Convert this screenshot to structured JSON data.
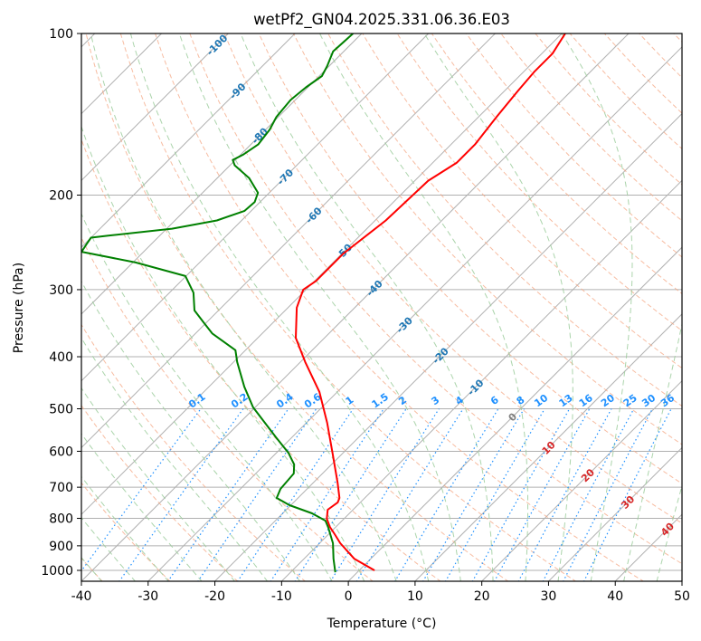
{
  "chart_data": {
    "type": "line",
    "subtype": "skew-t log-p",
    "title": "wetPf2_GN04.2025.331.06.36.E03",
    "xlabel": "Temperature (°C)",
    "ylabel": "Pressure (hPa)",
    "xlim": [
      -40,
      50
    ],
    "ylim": [
      1050,
      100
    ],
    "yscale": "log",
    "xticks": [
      "-40",
      "-30",
      "-20",
      "-10",
      "0",
      "10",
      "20",
      "30",
      "40",
      "50"
    ],
    "yticks": [
      "100",
      "200",
      "300",
      "400",
      "500",
      "600",
      "700",
      "800",
      "900",
      "1000"
    ],
    "grid": true,
    "series": [
      {
        "name": "Temperature",
        "color": "#ff0000",
        "p": [
          1000,
          951,
          890,
          856,
          830,
          801,
          771,
          747,
          733,
          686,
          604,
          531,
          465,
          409,
          369,
          324,
          300,
          289,
          257,
          223,
          188,
          174,
          161,
          143,
          128,
          118,
          109,
          100
        ],
        "t": [
          2.3,
          -2.5,
          -6.9,
          -9.1,
          -10.9,
          -12.6,
          -13.8,
          -13.4,
          -13.8,
          -16.4,
          -21.6,
          -26.9,
          -32.7,
          -39.3,
          -44.3,
          -48.7,
          -50.4,
          -49.8,
          -49.8,
          -48.4,
          -48.0,
          -46.4,
          -46.4,
          -47.3,
          -48.0,
          -48.4,
          -48.4,
          -49.5
        ]
      },
      {
        "name": "Dewpoint",
        "color": "#008000",
        "p": [
          1008,
          951,
          890,
          833,
          808,
          783,
          756,
          733,
          705,
          660,
          635,
          604,
          565,
          497,
          455,
          409,
          389,
          362,
          346,
          328,
          304,
          283,
          267,
          255,
          247,
          240,
          238,
          231,
          223,
          214,
          206,
          198,
          186,
          176,
          172,
          168,
          161,
          151,
          143,
          133,
          126,
          120,
          115,
          108,
          100
        ],
        "t": [
          -3.3,
          -5.6,
          -8.0,
          -11.0,
          -12.5,
          -15.6,
          -20.2,
          -23.2,
          -24.0,
          -24.3,
          -25.6,
          -28.2,
          -32.4,
          -40.3,
          -44.7,
          -49.5,
          -51.5,
          -57.5,
          -60.3,
          -63.6,
          -66.4,
          -70.1,
          -79.6,
          -89.3,
          -89.7,
          -90.0,
          -87.7,
          -79.2,
          -73.7,
          -71.0,
          -70.8,
          -71.7,
          -75.2,
          -79.3,
          -80.4,
          -79.6,
          -78.9,
          -79.4,
          -80.3,
          -80.7,
          -80.3,
          -79.6,
          -80.3,
          -81.6,
          -81.3
        ]
      }
    ],
    "isotherm_labels": [
      "-100",
      "-90",
      "-80",
      "-70",
      "-60",
      "-50",
      "-40",
      "-30",
      "-20",
      "-10",
      "0",
      "10",
      "20",
      "30",
      "40"
    ],
    "isotherm_label_values": [
      -100,
      -90,
      -80,
      -70,
      -60,
      -50,
      -40,
      -30,
      -20,
      -10,
      0,
      10,
      20,
      30,
      40
    ],
    "mixing_ratio_labels": [
      "0.1",
      "0.2",
      "0.4",
      "0.6",
      "1",
      "1.5",
      "2",
      "3",
      "4",
      "6",
      "8",
      "10",
      "13",
      "16",
      "20",
      "25",
      "30",
      "36"
    ],
    "mixing_ratio_values_gkg": [
      0.1,
      0.2,
      0.4,
      0.6,
      1,
      1.5,
      2,
      3,
      4,
      6,
      8,
      10,
      13,
      16,
      20,
      25,
      30,
      36
    ],
    "colors": {
      "temperature": "#ff0000",
      "dewpoint": "#008000",
      "dry_adiabat": "#f4a582",
      "moist_adiabat": "#9ccc9c",
      "mixing_ratio": "#1e90ff",
      "isotherm_neg_label": "#1f77b4",
      "isotherm_zero_label": "#7f7f7f",
      "isotherm_pos_label": "#d62728",
      "grid": "#b0b0b0"
    }
  }
}
